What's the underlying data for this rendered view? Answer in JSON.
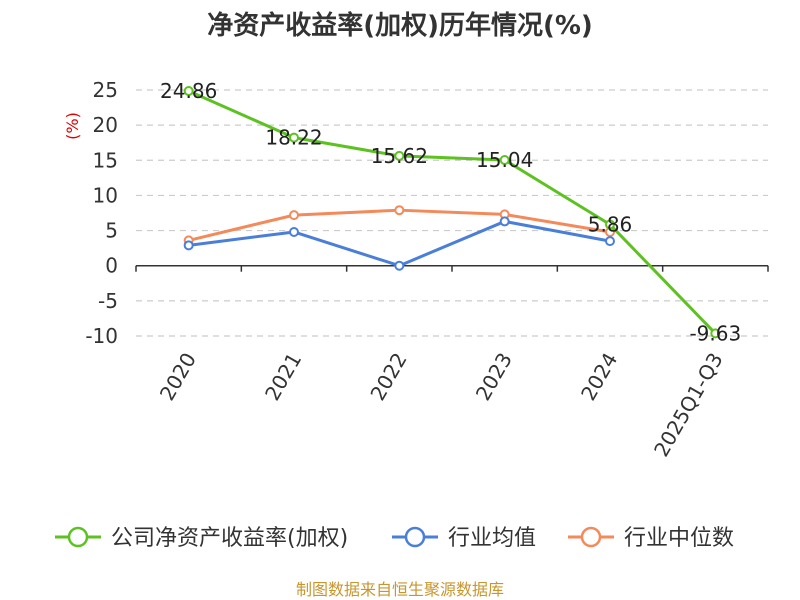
{
  "chart_data": {
    "type": "line",
    "title": "净资产收益率(加权)历年情况(%)",
    "unit_label": "(%)",
    "categories": [
      "2020",
      "2021",
      "2022",
      "2023",
      "2024",
      "2025Q1-Q3"
    ],
    "ylim": [
      -10,
      25
    ],
    "yticks": [
      25,
      20,
      15,
      10,
      5,
      0,
      -5,
      -10
    ],
    "ytick_labels": [
      "25",
      "20",
      "15",
      "10",
      "5",
      "0",
      "-5",
      "-10"
    ],
    "grid": true,
    "series": [
      {
        "name": "公司净资产收益率(加权)",
        "color": "#5dc221",
        "values": [
          24.86,
          18.22,
          15.62,
          15.04,
          5.86,
          -9.63
        ],
        "labels": [
          "24.86",
          "18.22",
          "15.62",
          "15.04",
          "5.86",
          "-9.63"
        ],
        "show_labels": true
      },
      {
        "name": "行业均值",
        "color": "#4a7fd9",
        "values": [
          2.9,
          4.8,
          0.0,
          6.3,
          3.5,
          null
        ],
        "show_labels": false
      },
      {
        "name": "行业中位数",
        "color": "#f4895a",
        "values": [
          3.6,
          7.2,
          7.9,
          7.3,
          4.8,
          null
        ],
        "show_labels": false
      }
    ],
    "legend_position": "bottom"
  },
  "footer": "制图数据来自恒生聚源数据库"
}
